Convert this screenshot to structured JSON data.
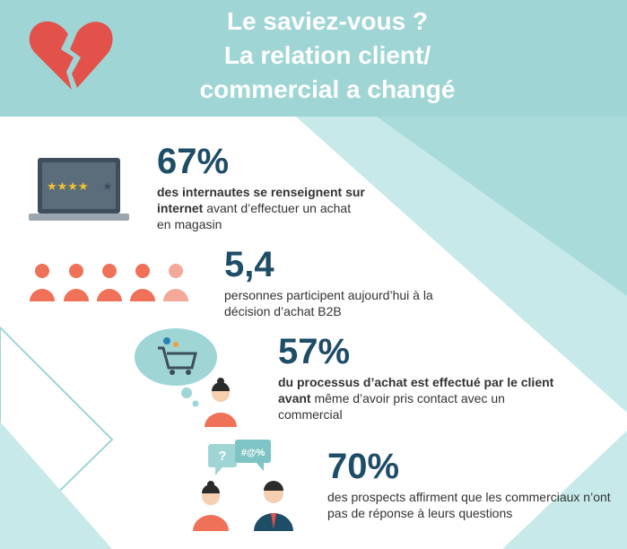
{
  "header": {
    "title_lines": [
      "Le saviez-vous ?",
      "La relation client/",
      "commercial a changé"
    ]
  },
  "bubbles": [
    "?",
    "#@%"
  ],
  "stats": [
    {
      "value": "67%",
      "description": [
        {
          "text": "des internautes se renseignent sur internet",
          "bold": true
        },
        {
          "text": " avant d’effectuer un achat en magasin",
          "bold": false
        }
      ]
    },
    {
      "value": "5,4",
      "description": [
        {
          "text": "personnes participent aujourd’hui à la décision d’achat B2B",
          "bold": false
        }
      ]
    },
    {
      "value": "57%",
      "description": [
        {
          "text": "du processus d’achat est effectué par le client avant",
          "bold": true
        },
        {
          "text": " même d’avoir pris contact avec un commercial",
          "bold": false
        }
      ]
    },
    {
      "value": "70%",
      "description": [
        {
          "text": "des prospects affirment que les commerciaux n’ont pas de réponse à leurs questions",
          "bold": false
        }
      ]
    }
  ]
}
